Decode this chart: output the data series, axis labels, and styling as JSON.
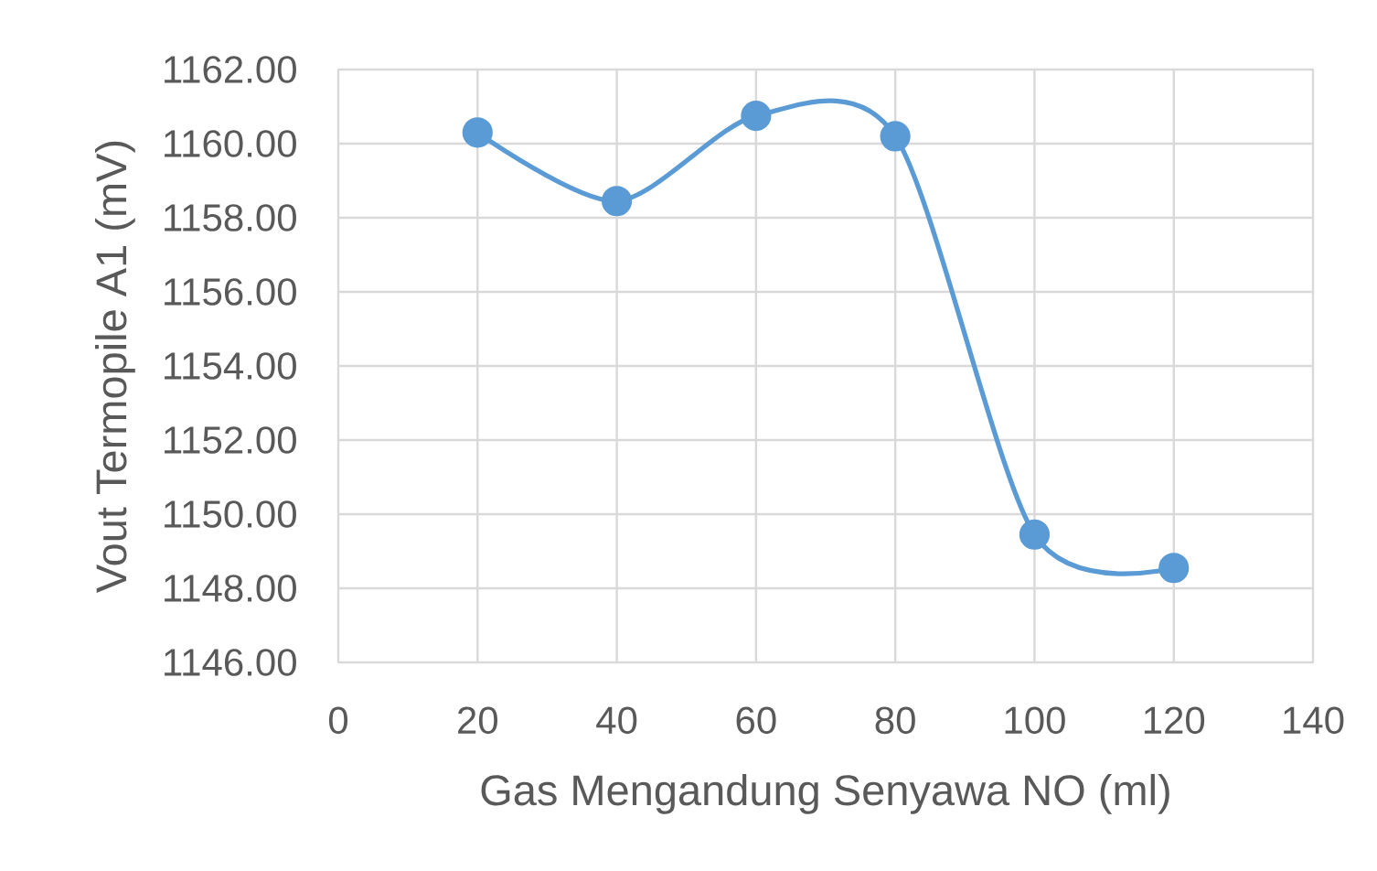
{
  "chart_data": {
    "type": "line",
    "xlabel": "Gas Mengandung Senyawa NO (ml)",
    "ylabel": "Vout Termopile A1 (mV)",
    "x": [
      20,
      40,
      60,
      80,
      100,
      120
    ],
    "values": [
      1160.3,
      1158.45,
      1160.75,
      1160.2,
      1149.45,
      1148.55
    ],
    "color": "#5b9bd5",
    "xlim": [
      0,
      140
    ],
    "ylim": [
      1146,
      1162
    ],
    "xticks": [
      0,
      20,
      40,
      60,
      80,
      100,
      120,
      140
    ],
    "yticks": [
      {
        "value": 1146,
        "label": "1146.00"
      },
      {
        "value": 1148,
        "label": "1148.00"
      },
      {
        "value": 1150,
        "label": "1150.00"
      },
      {
        "value": 1152,
        "label": "1152.00"
      },
      {
        "value": 1154,
        "label": "1154.00"
      },
      {
        "value": 1156,
        "label": "1156.00"
      },
      {
        "value": 1158,
        "label": "1158.00"
      },
      {
        "value": 1160,
        "label": "1160.00"
      },
      {
        "value": 1162,
        "label": "1162.00"
      }
    ],
    "grid": true,
    "marker": "circle",
    "line_style": "solid"
  }
}
